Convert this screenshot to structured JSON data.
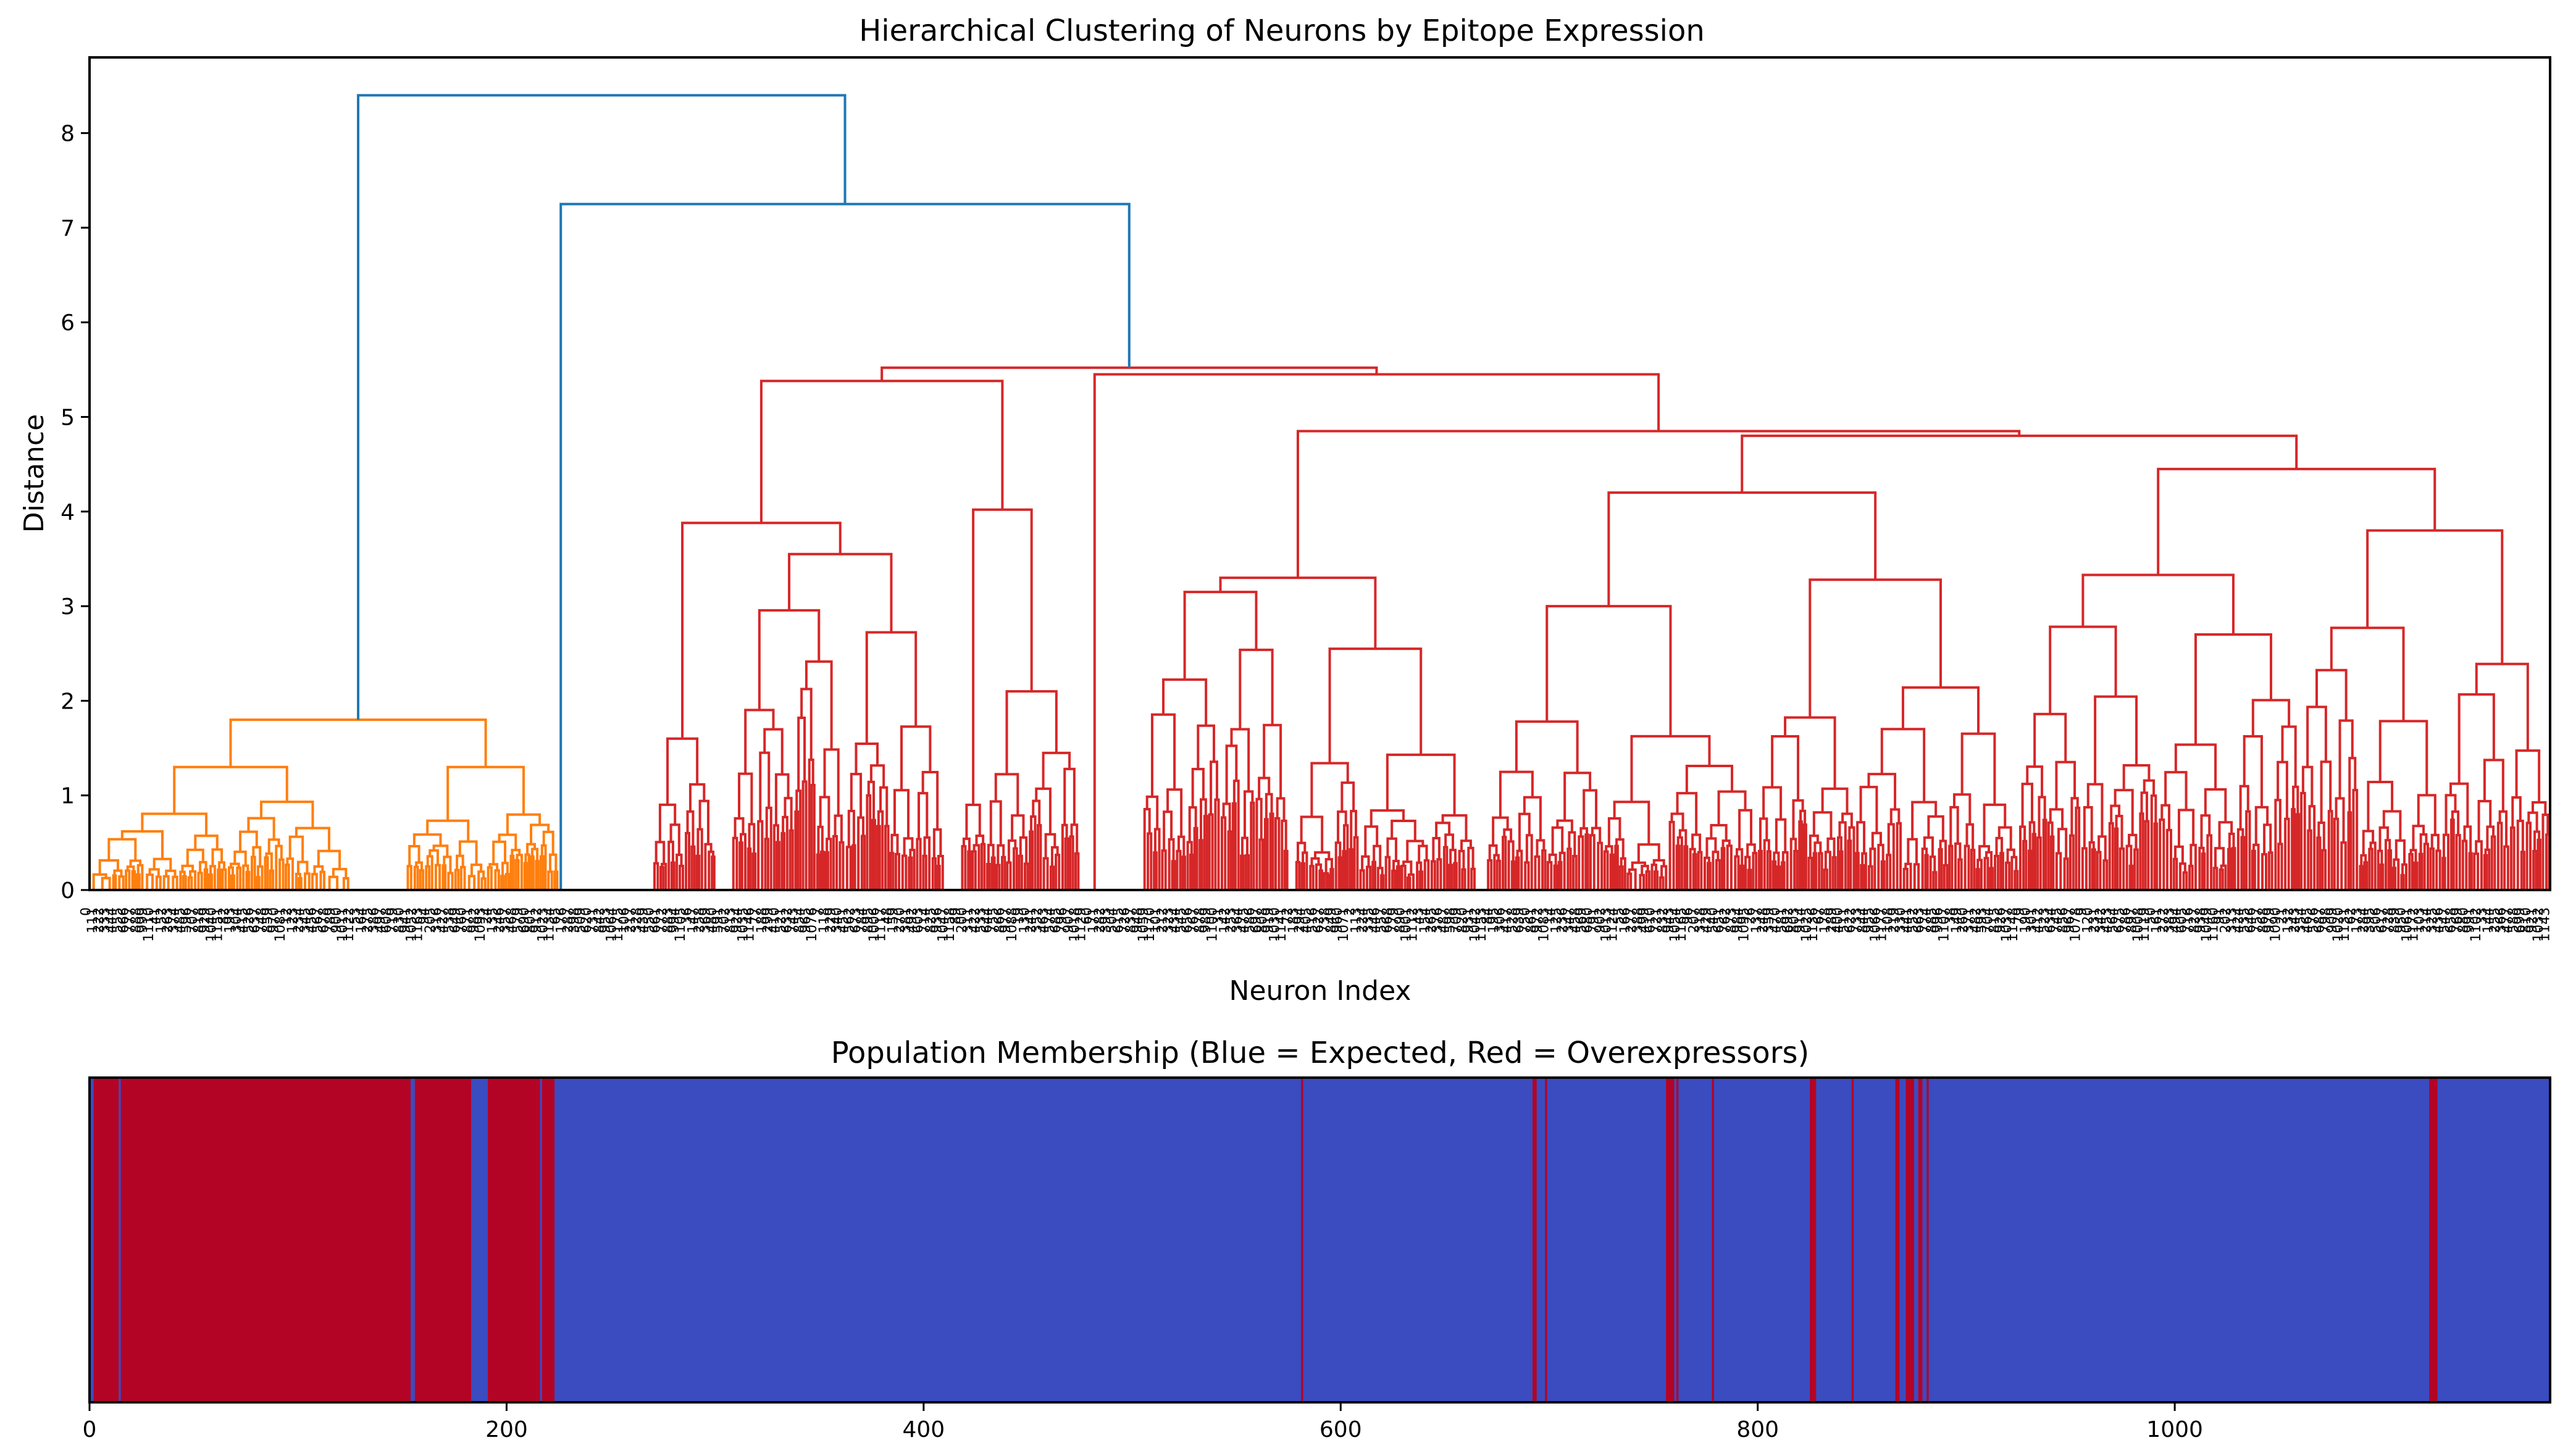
{
  "chart_data": [
    {
      "type": "dendrogram",
      "title": "Hierarchical Clustering of Neurons by Epitope Expression",
      "xlabel": "Neuron Index",
      "ylabel": "Distance",
      "ylim": [
        0,
        8.8
      ],
      "yticks": [
        0,
        1,
        2,
        3,
        4,
        5,
        6,
        7,
        8
      ],
      "leaf_count": 1180,
      "leaf_label_rotation": "vertical",
      "colors": {
        "orange_cluster": "#ff7f0e",
        "red_cluster": "#d62728",
        "above_threshold": "#1f77b4"
      },
      "main_merges": [
        {
          "left": "orange_cluster",
          "right": "rest",
          "height": 8.4
        },
        {
          "left": "gap_cluster",
          "right": "red_cluster",
          "height": 7.25
        },
        {
          "left": "red_left_group",
          "right": "red_right_group",
          "height": 5.52
        },
        {
          "left": "red_right_a",
          "right": "red_right_b",
          "height": 5.45
        },
        {
          "left": "red_sub_1",
          "right": "red_sub_2",
          "height": 5.38
        },
        {
          "left": "red_sub_3",
          "right": "red_sub_4",
          "height": 4.85
        },
        {
          "left": "red_sub_5",
          "right": "red_sub_6",
          "height": 4.8
        },
        {
          "left": "red_sub_7",
          "right": "red_sub_8",
          "height": 4.45
        },
        {
          "left": "red_sub_9",
          "right": "red_sub_10",
          "height": 4.2
        },
        {
          "left": "red_sub_11",
          "right": "red_sub_12",
          "height": 4.02
        },
        {
          "left": "red_sub_13",
          "right": "red_sub_14",
          "height": 3.88
        },
        {
          "left": "orange_a",
          "right": "orange_b",
          "height": 1.8
        }
      ]
    },
    {
      "type": "heatmap",
      "title": "Population Membership (Blue = Expected, Red = Overexpressors)",
      "xlim": [
        0,
        1180
      ],
      "xticks": [
        0,
        200,
        400,
        600,
        800,
        1000
      ],
      "colors": {
        "expected": "#3a4cc0",
        "overexpressor": "#b40426"
      },
      "overexpressor_ranges": [
        [
          2,
          14
        ],
        [
          15,
          154
        ],
        [
          156,
          183
        ],
        [
          191,
          216
        ],
        [
          217,
          223
        ],
        [
          581,
          582
        ],
        [
          692,
          694
        ],
        [
          698,
          699
        ],
        [
          756,
          760
        ],
        [
          761,
          762
        ],
        [
          778,
          779
        ],
        [
          825,
          828
        ],
        [
          845,
          846
        ],
        [
          866,
          868
        ],
        [
          871,
          875
        ],
        [
          877,
          879
        ],
        [
          881,
          882
        ],
        [
          1122,
          1126
        ]
      ]
    }
  ]
}
